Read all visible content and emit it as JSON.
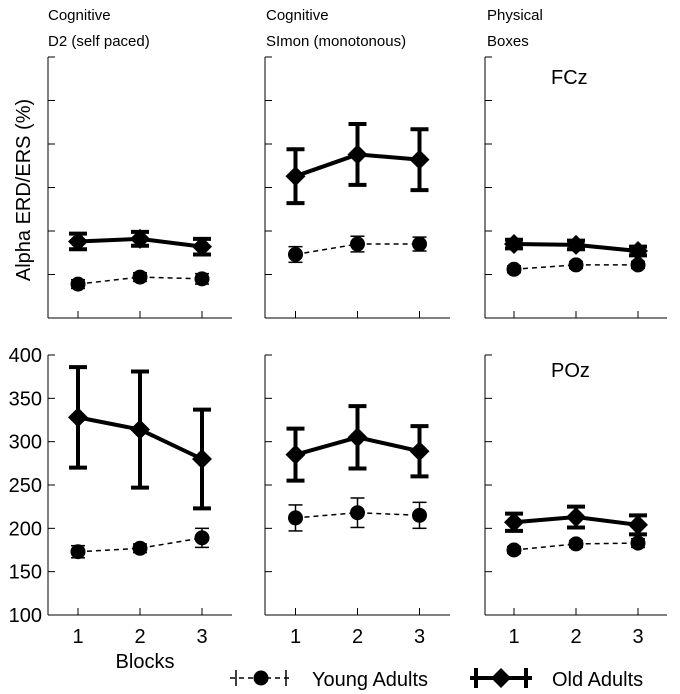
{
  "chart_data": {
    "type": "line",
    "ylabel": "Alpha ERD/ERS (%)",
    "xlabel": "Blocks",
    "categories": [
      "1",
      "2",
      "3"
    ],
    "ylim": [
      100,
      400
    ],
    "yticks": [
      "100",
      "150",
      "200",
      "250",
      "300",
      "350",
      "400"
    ],
    "legend": {
      "placement": "bottom",
      "entries": [
        "Young Adults",
        "Old Adults"
      ]
    },
    "columns": [
      {
        "line1": "Cognitive",
        "line2": "D2 (self paced)"
      },
      {
        "line1": "Cognitive",
        "line2": "SImon (monotonous)"
      },
      {
        "line1": "Physical",
        "line2": "Boxes"
      }
    ],
    "rows": [
      {
        "label": "FCz",
        "ylim": [
          100,
          400
        ]
      },
      {
        "label": "POz",
        "ylim": [
          100,
          400
        ]
      }
    ],
    "panels": [
      {
        "row": 0,
        "col": 0,
        "series": [
          {
            "name": "Young Adults",
            "values": [
              139,
              147,
              145
            ],
            "err": [
              5,
              5,
              6
            ]
          },
          {
            "name": "Old Adults",
            "values": [
              188,
              191,
              182
            ],
            "err": [
              9,
              8,
              9
            ]
          }
        ]
      },
      {
        "row": 0,
        "col": 1,
        "series": [
          {
            "name": "Young Adults",
            "values": [
              173,
              185,
              185
            ],
            "err": [
              9,
              9,
              8
            ]
          },
          {
            "name": "Old Adults",
            "values": [
              263,
              288,
              282
            ],
            "err": [
              31,
              35,
              35
            ]
          }
        ]
      },
      {
        "row": 0,
        "col": 2,
        "series": [
          {
            "name": "Young Adults",
            "values": [
              156,
              161,
              161
            ],
            "err": [
              4,
              4,
              4
            ]
          },
          {
            "name": "Old Adults",
            "values": [
              185,
              184,
              177
            ],
            "err": [
              5,
              5,
              5
            ]
          }
        ]
      },
      {
        "row": 1,
        "col": 0,
        "series": [
          {
            "name": "Young Adults",
            "values": [
              173,
              177,
              189
            ],
            "err": [
              7,
              5,
              11
            ]
          },
          {
            "name": "Old Adults",
            "values": [
              328,
              314,
              280
            ],
            "err": [
              58,
              67,
              57
            ]
          }
        ]
      },
      {
        "row": 1,
        "col": 1,
        "series": [
          {
            "name": "Young Adults",
            "values": [
              212,
              218,
              215
            ],
            "err": [
              15,
              17,
              15
            ]
          },
          {
            "name": "Old Adults",
            "values": [
              285,
              305,
              289
            ],
            "err": [
              30,
              36,
              29
            ]
          }
        ]
      },
      {
        "row": 1,
        "col": 2,
        "series": [
          {
            "name": "Young Adults",
            "values": [
              175,
              182,
              183
            ],
            "err": [
              4,
              4,
              5
            ]
          },
          {
            "name": "Old Adults",
            "values": [
              207,
              213,
              204
            ],
            "err": [
              10,
              12,
              11
            ]
          }
        ]
      }
    ]
  }
}
